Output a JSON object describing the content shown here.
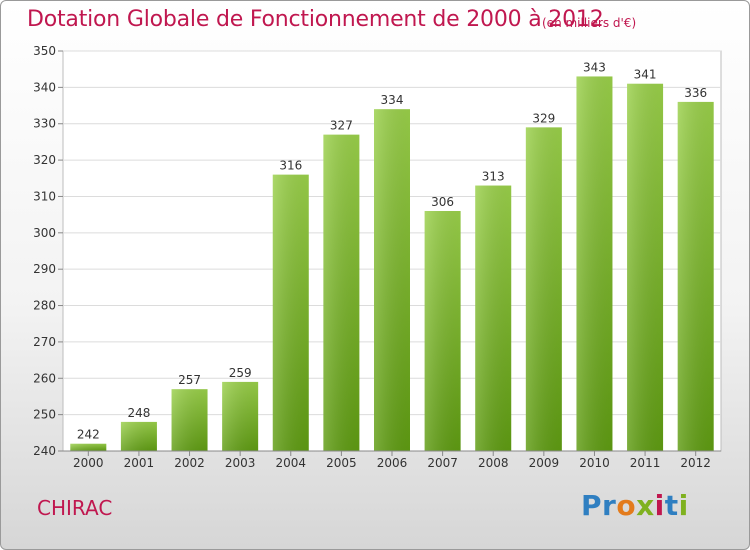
{
  "title": "Dotation Globale de Fonctionnement de 2000 à 2012",
  "unit_note": "(en milliers d'€)",
  "commune": "CHIRAC",
  "logo": {
    "letters": [
      "P",
      "r",
      "o",
      "x",
      "i",
      "t",
      "i"
    ],
    "colors": [
      "#2f7fc1",
      "#2f7fc1",
      "#e37b1c",
      "#7fb11f",
      "#c0174f",
      "#2f7fc1",
      "#7fb11f"
    ]
  },
  "chart_data": {
    "type": "bar",
    "title": "Dotation Globale de Fonctionnement de 2000 à 2012",
    "subtitle": "(en milliers d'€)",
    "xlabel": "",
    "ylabel": "",
    "categories": [
      "2000",
      "2001",
      "2002",
      "2003",
      "2004",
      "2005",
      "2006",
      "2007",
      "2008",
      "2009",
      "2010",
      "2011",
      "2012"
    ],
    "values": [
      242,
      248,
      257,
      259,
      316,
      327,
      334,
      306,
      313,
      329,
      343,
      341,
      336
    ],
    "ylim": [
      240,
      350
    ],
    "yticks": [
      240,
      250,
      260,
      270,
      280,
      290,
      300,
      310,
      320,
      330,
      340,
      350
    ],
    "grid": true,
    "bar_color": "#7fbf2a",
    "legend": "none"
  }
}
